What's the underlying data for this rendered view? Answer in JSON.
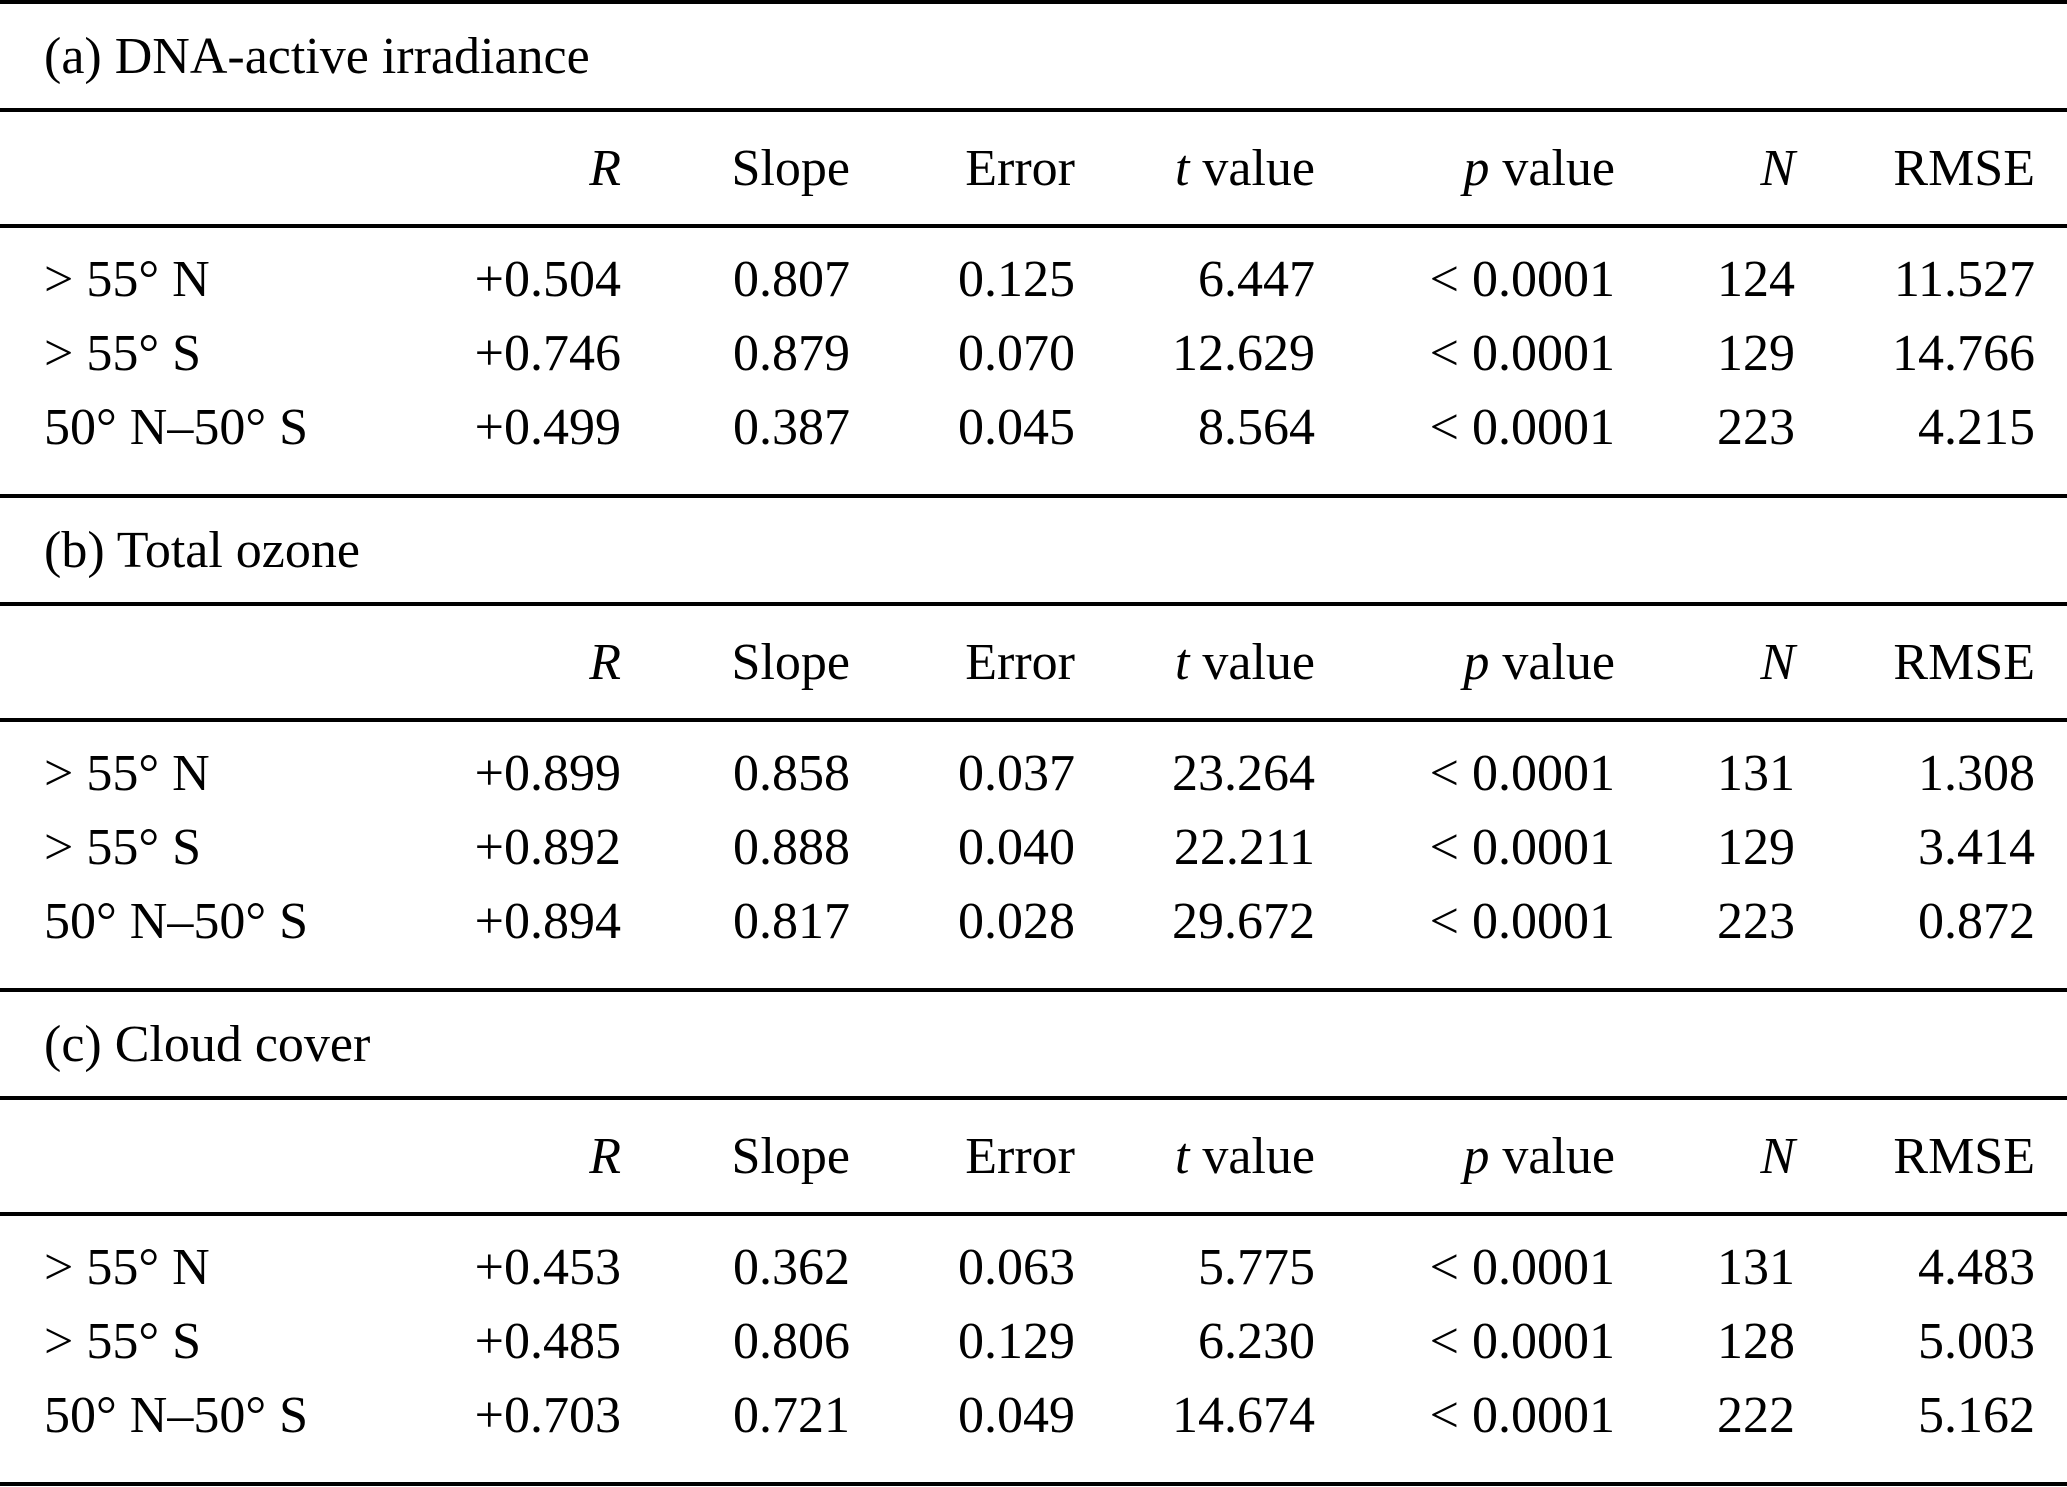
{
  "page": {
    "background": "#ffffff",
    "text_color": "#000000",
    "rule_color": "#000000"
  },
  "table": {
    "columns": [
      {
        "key": "row-label",
        "it": "",
        "rm": ""
      },
      {
        "key": "R",
        "it": "R",
        "rm": ""
      },
      {
        "key": "Slope",
        "it": "",
        "rm": "Slope"
      },
      {
        "key": "Error",
        "it": "",
        "rm": "Error"
      },
      {
        "key": "t-value",
        "it": "t",
        "rm": " value"
      },
      {
        "key": "p-value",
        "it": "p",
        "rm": " value"
      },
      {
        "key": "N",
        "it": "N",
        "rm": ""
      },
      {
        "key": "RMSE",
        "it": "",
        "rm": "RMSE"
      }
    ],
    "sections": [
      {
        "id": "a",
        "title": "(a) DNA-active irradiance",
        "rows": [
          {
            "label": "> 55° N",
            "cells": [
              "+0.504",
              "0.807",
              "0.125",
              "6.447",
              "< 0.0001",
              "124",
              "11.527"
            ]
          },
          {
            "label": "> 55° S",
            "cells": [
              "+0.746",
              "0.879",
              "0.070",
              "12.629",
              "< 0.0001",
              "129",
              "14.766"
            ]
          },
          {
            "label": "50° N–50° S",
            "cells": [
              "+0.499",
              "0.387",
              "0.045",
              "8.564",
              "< 0.0001",
              "223",
              "4.215"
            ]
          }
        ]
      },
      {
        "id": "b",
        "title": "(b) Total ozone",
        "rows": [
          {
            "label": "> 55° N",
            "cells": [
              "+0.899",
              "0.858",
              "0.037",
              "23.264",
              "< 0.0001",
              "131",
              "1.308"
            ]
          },
          {
            "label": "> 55° S",
            "cells": [
              "+0.892",
              "0.888",
              "0.040",
              "22.211",
              "< 0.0001",
              "129",
              "3.414"
            ]
          },
          {
            "label": "50° N–50° S",
            "cells": [
              "+0.894",
              "0.817",
              "0.028",
              "29.672",
              "< 0.0001",
              "223",
              "0.872"
            ]
          }
        ]
      },
      {
        "id": "c",
        "title": "(c) Cloud cover",
        "rows": [
          {
            "label": "> 55° N",
            "cells": [
              "+0.453",
              "0.362",
              "0.063",
              "5.775",
              "< 0.0001",
              "131",
              "4.483"
            ]
          },
          {
            "label": "> 55° S",
            "cells": [
              "+0.485",
              "0.806",
              "0.129",
              "6.230",
              "< 0.0001",
              "128",
              "5.003"
            ]
          },
          {
            "label": "50° N–50° S",
            "cells": [
              "+0.703",
              "0.721",
              "0.049",
              "14.674",
              "< 0.0001",
              "222",
              "5.162"
            ]
          }
        ]
      }
    ]
  }
}
